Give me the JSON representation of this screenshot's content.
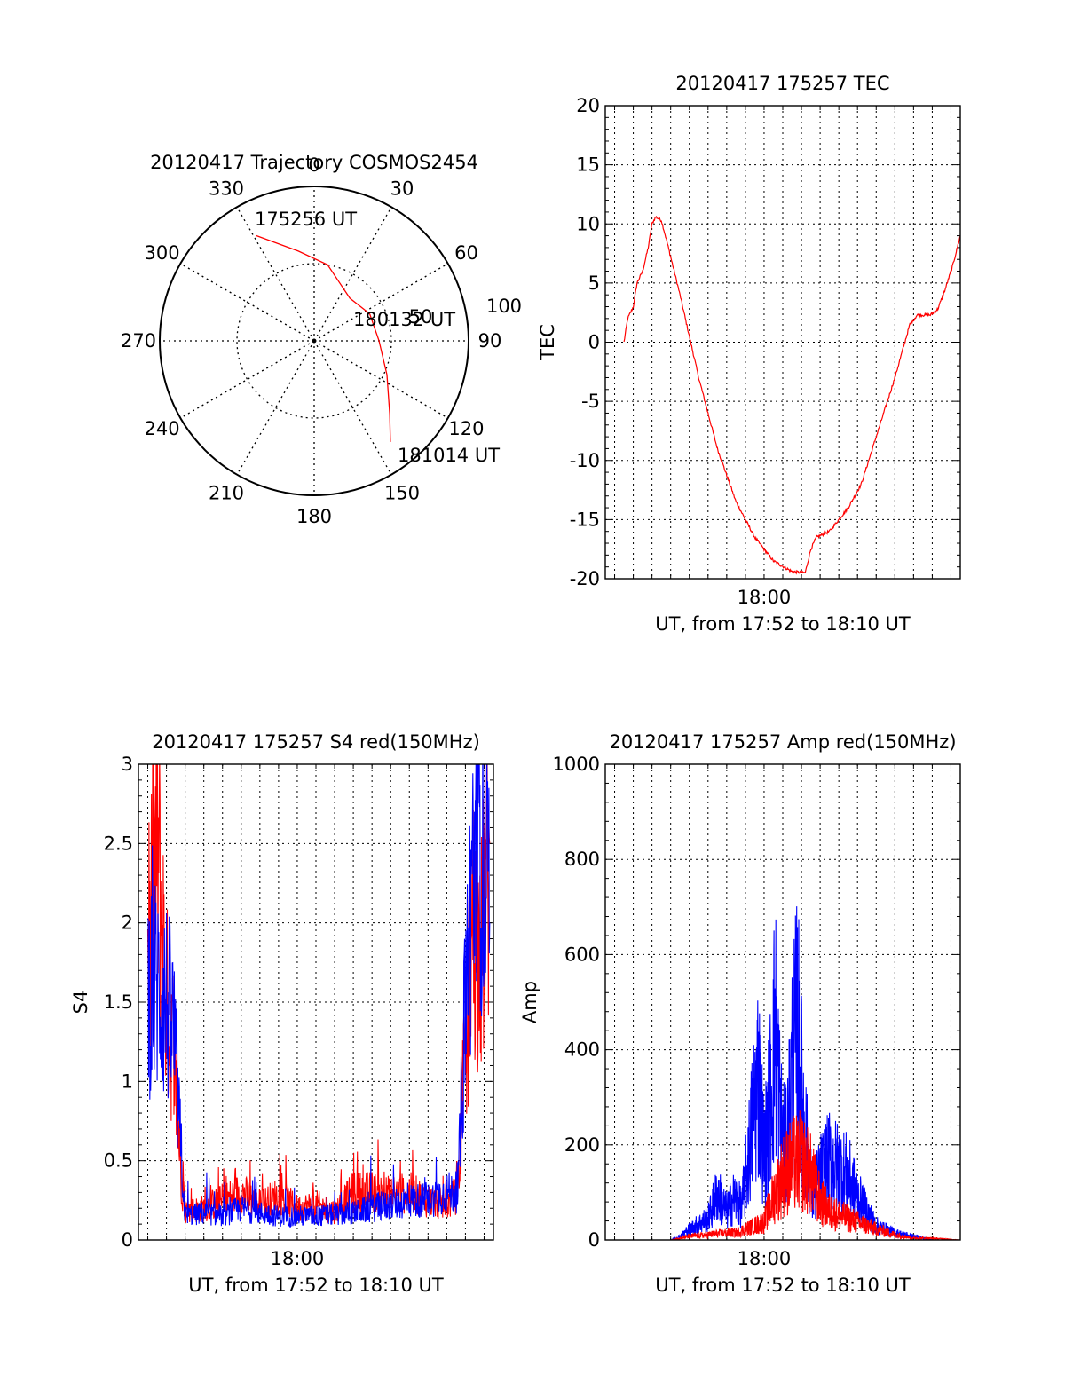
{
  "chart_data": [
    {
      "type": "polar",
      "title": "20120417 Trajectory COSMOS2454",
      "angle_labels": [
        "0",
        "30",
        "60",
        "90",
        "120",
        "150",
        "180",
        "210",
        "240",
        "270",
        "300",
        "330"
      ],
      "radial_ring_labels": [
        "50",
        "100"
      ],
      "grid": true,
      "trajectory": [
        {
          "az": 331,
          "r": 78
        },
        {
          "az": 350,
          "r": 59
        },
        {
          "az": 10,
          "r": 50
        },
        {
          "az": 40,
          "r": 36
        },
        {
          "az": 64,
          "r": 40
        },
        {
          "az": 90,
          "r": 42
        },
        {
          "az": 115,
          "r": 52
        },
        {
          "az": 134,
          "r": 68
        },
        {
          "az": 143,
          "r": 82
        }
      ],
      "annotations": [
        {
          "text": "175256 UT"
        },
        {
          "text": "180132 UT"
        },
        {
          "text": "181014 UT"
        }
      ],
      "series_color": "#ff0000"
    },
    {
      "type": "line",
      "title": "20120417 175257 TEC",
      "xlabel": "UT, from 17:52 to 18:10 UT",
      "ylabel": "TEC",
      "xtick_label": "18:00",
      "xlim_minutes": [
        -8.5,
        10.5
      ],
      "ylim": [
        -20,
        20
      ],
      "yticks": [
        -20,
        -15,
        -10,
        -5,
        0,
        5,
        10,
        15,
        20
      ],
      "grid": true,
      "series": [
        {
          "color": "#ff0000",
          "points": [
            [
              -7.5,
              0
            ],
            [
              -7.3,
              2
            ],
            [
              -7.0,
              3
            ],
            [
              -6.8,
              5
            ],
            [
              -6.5,
              6
            ],
            [
              -6.2,
              8
            ],
            [
              -6.0,
              10
            ],
            [
              -5.8,
              10.6
            ],
            [
              -5.5,
              10.3
            ],
            [
              -5.2,
              8.5
            ],
            [
              -4.5,
              4
            ],
            [
              -3.5,
              -3
            ],
            [
              -2.5,
              -9
            ],
            [
              -1.5,
              -13.5
            ],
            [
              -0.5,
              -16.5
            ],
            [
              0.5,
              -18.5
            ],
            [
              1.5,
              -19.4
            ],
            [
              2.2,
              -19.5
            ],
            [
              2.5,
              -17.5
            ],
            [
              2.8,
              -16.5
            ],
            [
              3.5,
              -16
            ],
            [
              4.5,
              -14
            ],
            [
              5.2,
              -12
            ],
            [
              6.0,
              -8
            ],
            [
              7.0,
              -3
            ],
            [
              7.8,
              1.5
            ],
            [
              8.2,
              2.3
            ],
            [
              8.9,
              2.3
            ],
            [
              9.3,
              2.8
            ],
            [
              9.7,
              4.5
            ],
            [
              10.1,
              6.5
            ],
            [
              10.5,
              9
            ]
          ]
        }
      ]
    },
    {
      "type": "line",
      "title": "20120417 175257 S4 red(150MHz)",
      "xlabel": "UT, from 17:52 to 18:10 UT",
      "ylabel": "S4",
      "xtick_label": "18:00",
      "xlim_minutes": [
        -8.5,
        10.5
      ],
      "ylim": [
        0,
        3
      ],
      "yticks": [
        0,
        0.5,
        1,
        1.5,
        2,
        2.5,
        3
      ],
      "grid": true,
      "series": [
        {
          "color": "#ff0000",
          "points": [
            [
              -8,
              1.8
            ],
            [
              -7.5,
              2.5
            ],
            [
              -7,
              1.5
            ],
            [
              -6.6,
              1.2
            ],
            [
              -6.2,
              0.4
            ],
            [
              -6.0,
              0.18
            ],
            [
              -5,
              0.2
            ],
            [
              -4,
              0.25
            ],
            [
              -3,
              0.3
            ],
            [
              -2,
              0.22
            ],
            [
              -1,
              0.28
            ],
            [
              0,
              0.2
            ],
            [
              1,
              0.22
            ],
            [
              2,
              0.18
            ],
            [
              3,
              0.3
            ],
            [
              4,
              0.3
            ],
            [
              5,
              0.28
            ],
            [
              6,
              0.3
            ],
            [
              7,
              0.25
            ],
            [
              8,
              0.22
            ],
            [
              8.6,
              0.3
            ],
            [
              9.0,
              1.2
            ],
            [
              9.4,
              2.0
            ],
            [
              9.8,
              1.7
            ],
            [
              10.3,
              2.5
            ]
          ]
        },
        {
          "color": "#0000ff",
          "points": [
            [
              -8,
              1.6
            ],
            [
              -7.5,
              1.6
            ],
            [
              -7,
              1.5
            ],
            [
              -6.6,
              1.3
            ],
            [
              -6.2,
              0.5
            ],
            [
              -6.0,
              0.15
            ],
            [
              -5,
              0.17
            ],
            [
              -4,
              0.15
            ],
            [
              -3,
              0.2
            ],
            [
              -2,
              0.17
            ],
            [
              -1,
              0.15
            ],
            [
              0,
              0.15
            ],
            [
              1,
              0.15
            ],
            [
              2,
              0.16
            ],
            [
              3,
              0.17
            ],
            [
              4,
              0.2
            ],
            [
              5,
              0.22
            ],
            [
              6,
              0.25
            ],
            [
              7,
              0.25
            ],
            [
              8,
              0.3
            ],
            [
              8.6,
              0.3
            ],
            [
              9.0,
              1.5
            ],
            [
              9.4,
              2.3
            ],
            [
              9.8,
              2.6
            ],
            [
              10.3,
              2.0
            ]
          ]
        }
      ]
    },
    {
      "type": "line",
      "title": "20120417 175257 Amp red(150MHz)",
      "xlabel": "UT, from 17:52 to 18:10 UT",
      "ylabel": "Amp",
      "xtick_label": "18:00",
      "xlim_minutes": [
        -8.5,
        10.5
      ],
      "ylim": [
        0,
        1000
      ],
      "yticks": [
        0,
        200,
        400,
        600,
        800,
        1000
      ],
      "grid": true,
      "series": [
        {
          "color": "#0000ff",
          "points": [
            [
              -8,
              0
            ],
            [
              -5,
              0
            ],
            [
              -4.5,
              10
            ],
            [
              -4,
              30
            ],
            [
              -3,
              60
            ],
            [
              -2.5,
              130
            ],
            [
              -2,
              80
            ],
            [
              -1.6,
              120
            ],
            [
              -1.2,
              90
            ],
            [
              -0.8,
              250
            ],
            [
              -0.5,
              380
            ],
            [
              -0.3,
              470
            ],
            [
              0,
              230
            ],
            [
              0.3,
              380
            ],
            [
              0.6,
              600
            ],
            [
              0.9,
              320
            ],
            [
              1.2,
              250
            ],
            [
              1.5,
              480
            ],
            [
              1.8,
              600
            ],
            [
              2.0,
              420
            ],
            [
              2.3,
              250
            ],
            [
              2.6,
              120
            ],
            [
              3,
              180
            ],
            [
              3.5,
              220
            ],
            [
              4,
              200
            ],
            [
              4.5,
              180
            ],
            [
              5,
              120
            ],
            [
              5.5,
              80
            ],
            [
              6,
              40
            ],
            [
              7,
              20
            ],
            [
              8,
              10
            ],
            [
              9,
              0
            ],
            [
              10.5,
              0
            ]
          ]
        },
        {
          "color": "#ff0000",
          "points": [
            [
              -8,
              0
            ],
            [
              -5,
              0
            ],
            [
              -4.5,
              5
            ],
            [
              -4,
              10
            ],
            [
              -3,
              15
            ],
            [
              -2,
              20
            ],
            [
              -1.5,
              20
            ],
            [
              -1,
              30
            ],
            [
              -0.5,
              40
            ],
            [
              0,
              50
            ],
            [
              0.5,
              120
            ],
            [
              1,
              180
            ],
            [
              1.5,
              210
            ],
            [
              2,
              220
            ],
            [
              2.5,
              180
            ],
            [
              3,
              110
            ],
            [
              3.5,
              80
            ],
            [
              4,
              70
            ],
            [
              4.5,
              60
            ],
            [
              5,
              50
            ],
            [
              6,
              30
            ],
            [
              7,
              15
            ],
            [
              8,
              5
            ],
            [
              8.8,
              5
            ],
            [
              10.5,
              0
            ]
          ]
        }
      ]
    }
  ]
}
